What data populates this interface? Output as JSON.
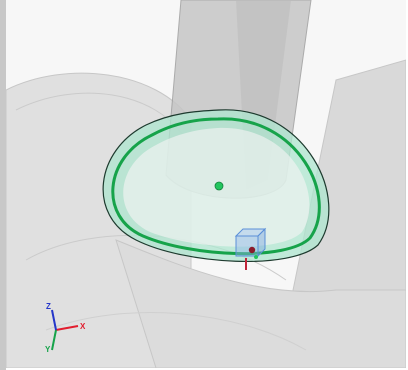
{
  "viewport": {
    "title": "",
    "background": "#f7f7f7"
  },
  "model": {
    "body_color": "#d8d8d8",
    "body_edge": "#a9a9a9",
    "cylinder_color": "#c8c8c8",
    "icons": [
      "pipe-body",
      "vertical-cylinder",
      "face-highlight",
      "loop-path",
      "center-point",
      "selection-box"
    ]
  },
  "selection": {
    "face_fill": "#aee6cf",
    "face_edge": "#1d3a2e",
    "loop_color": "#16a34a",
    "center_point_color": "#22c55e",
    "box_color": "#8db4ea",
    "marker_color": "#c0263a"
  },
  "triad": {
    "x_label": "X",
    "y_label": "Y",
    "z_label": "Z",
    "x_color": "#e11d2e",
    "y_color": "#16a34a",
    "z_color": "#2536c9"
  }
}
